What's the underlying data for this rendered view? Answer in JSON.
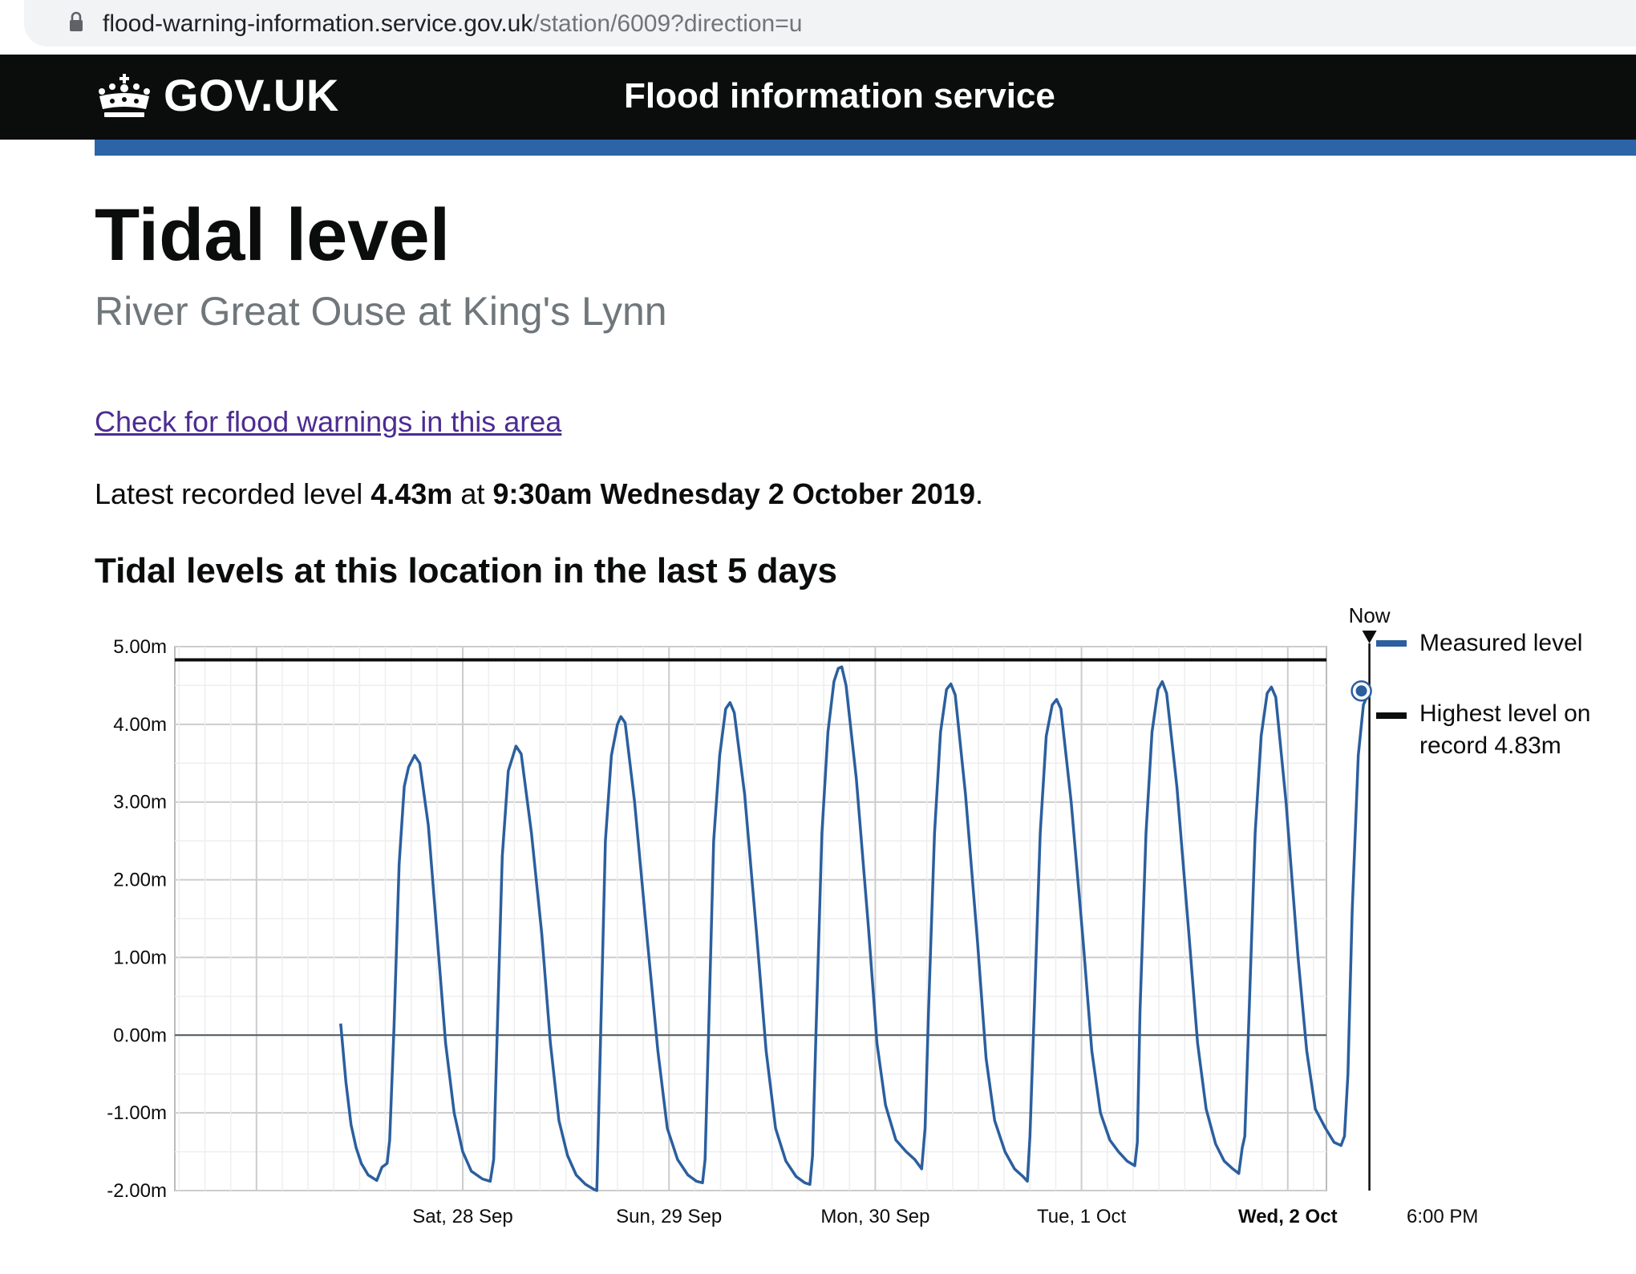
{
  "browser": {
    "url_domain": "flood-warning-information.service.gov.uk",
    "url_path": "/station/6009?direction=u"
  },
  "header": {
    "logo_text": "GOV.UK",
    "service_name": "Flood information service"
  },
  "page": {
    "title": "Tidal level",
    "subtitle": "River Great Ouse at King's Lynn",
    "warnings_link": "Check for flood warnings in this area",
    "latest_prefix": "Latest recorded level",
    "latest_value": "4.43m",
    "latest_at": "at",
    "latest_time": "9:30am Wednesday 2 October 2019",
    "latest_suffix": ".",
    "chart_heading": "Tidal levels at this location in the last 5 days"
  },
  "legend": {
    "measured": "Measured level",
    "highest": "Highest level on record 4.83m"
  },
  "colors": {
    "series": "#2b5f9e",
    "highest_line": "#0b0c0c",
    "grid_major": "#cccccc",
    "grid_minor": "#eeeeee"
  },
  "chart_data": {
    "type": "line",
    "title": "Tidal levels at this location in the last 5 days",
    "y_tick_labels": [
      "5.00m",
      "4.00m",
      "3.00m",
      "2.00m",
      "1.00m",
      "0.00m",
      "-1.00m",
      "-2.00m"
    ],
    "ylim": [
      -2,
      5
    ],
    "x_range_hours": [
      -33.5,
      100.5
    ],
    "x_ticks": [
      {
        "hours": 0,
        "label": "Sat, 28 Sep",
        "bold": false
      },
      {
        "hours": 24,
        "label": "Sun, 29 Sep",
        "bold": false
      },
      {
        "hours": 48,
        "label": "Mon, 30 Sep",
        "bold": false
      },
      {
        "hours": 72,
        "label": "Tue, 1 Oct",
        "bold": false
      },
      {
        "hours": 96,
        "label": "Wed, 2 Oct",
        "bold": true
      },
      {
        "hours": 114,
        "label": "6:00 PM",
        "bold": false
      }
    ],
    "x_axis_note": "x in hours relative to midnight Sat 28 Sep",
    "highest_on_record": 4.83,
    "now": {
      "hours": 105.5,
      "label": "Now",
      "value": 4.43
    },
    "grid": true,
    "legend_position": "right",
    "series": [
      {
        "name": "Measured level",
        "points": [
          [
            -14.2,
            0.15
          ],
          [
            -13.6,
            -0.6
          ],
          [
            -13.0,
            -1.15
          ],
          [
            -12.4,
            -1.45
          ],
          [
            -11.8,
            -1.65
          ],
          [
            -11.0,
            -1.8
          ],
          [
            -10.0,
            -1.87
          ],
          [
            -9.4,
            -1.7
          ],
          [
            -8.8,
            -1.65
          ],
          [
            -8.5,
            -1.35
          ],
          [
            -8.0,
            0.1
          ],
          [
            -7.4,
            2.2
          ],
          [
            -6.8,
            3.2
          ],
          [
            -6.3,
            3.45
          ],
          [
            -5.6,
            3.6
          ],
          [
            -5.0,
            3.5
          ],
          [
            -4.0,
            2.7
          ],
          [
            -3.0,
            1.3
          ],
          [
            -2.0,
            -0.1
          ],
          [
            -1.0,
            -1.0
          ],
          [
            0.0,
            -1.5
          ],
          [
            1.0,
            -1.75
          ],
          [
            2.3,
            -1.85
          ],
          [
            3.2,
            -1.88
          ],
          [
            3.6,
            -1.6
          ],
          [
            4.0,
            0.0
          ],
          [
            4.6,
            2.3
          ],
          [
            5.3,
            3.4
          ],
          [
            6.2,
            3.72
          ],
          [
            6.8,
            3.62
          ],
          [
            8.0,
            2.6
          ],
          [
            9.2,
            1.3
          ],
          [
            10.2,
            -0.1
          ],
          [
            11.2,
            -1.1
          ],
          [
            12.2,
            -1.55
          ],
          [
            13.2,
            -1.8
          ],
          [
            14.3,
            -1.92
          ],
          [
            15.2,
            -1.98
          ],
          [
            15.6,
            -2.0
          ],
          [
            16.0,
            -0.2
          ],
          [
            16.6,
            2.5
          ],
          [
            17.3,
            3.6
          ],
          [
            18.0,
            4.0
          ],
          [
            18.4,
            4.1
          ],
          [
            18.9,
            4.02
          ],
          [
            20.0,
            3.0
          ],
          [
            21.5,
            1.2
          ],
          [
            22.7,
            -0.2
          ],
          [
            23.8,
            -1.2
          ],
          [
            25.0,
            -1.6
          ],
          [
            26.2,
            -1.8
          ],
          [
            27.2,
            -1.88
          ],
          [
            27.9,
            -1.9
          ],
          [
            28.2,
            -1.6
          ],
          [
            28.6,
            0.0
          ],
          [
            29.2,
            2.5
          ],
          [
            29.9,
            3.6
          ],
          [
            30.6,
            4.2
          ],
          [
            31.1,
            4.28
          ],
          [
            31.6,
            4.15
          ],
          [
            32.8,
            3.1
          ],
          [
            34.2,
            1.3
          ],
          [
            35.3,
            -0.2
          ],
          [
            36.4,
            -1.2
          ],
          [
            37.6,
            -1.62
          ],
          [
            38.8,
            -1.82
          ],
          [
            39.8,
            -1.9
          ],
          [
            40.4,
            -1.92
          ],
          [
            40.7,
            -1.55
          ],
          [
            41.1,
            0.0
          ],
          [
            41.8,
            2.6
          ],
          [
            42.5,
            3.9
          ],
          [
            43.2,
            4.55
          ],
          [
            43.7,
            4.72
          ],
          [
            44.1,
            4.74
          ],
          [
            44.6,
            4.5
          ],
          [
            45.8,
            3.3
          ],
          [
            47.2,
            1.4
          ],
          [
            48.2,
            -0.1
          ],
          [
            49.2,
            -0.9
          ],
          [
            50.4,
            -1.35
          ],
          [
            51.6,
            -1.5
          ],
          [
            52.6,
            -1.6
          ],
          [
            53.4,
            -1.72
          ],
          [
            53.8,
            -1.2
          ],
          [
            54.2,
            0.3
          ],
          [
            54.9,
            2.6
          ],
          [
            55.6,
            3.9
          ],
          [
            56.3,
            4.45
          ],
          [
            56.8,
            4.52
          ],
          [
            57.3,
            4.38
          ],
          [
            58.5,
            3.1
          ],
          [
            59.9,
            1.2
          ],
          [
            60.9,
            -0.3
          ],
          [
            61.9,
            -1.1
          ],
          [
            63.1,
            -1.5
          ],
          [
            64.2,
            -1.72
          ],
          [
            65.2,
            -1.82
          ],
          [
            65.7,
            -1.88
          ],
          [
            66.0,
            -1.3
          ],
          [
            66.5,
            0.3
          ],
          [
            67.2,
            2.6
          ],
          [
            67.9,
            3.85
          ],
          [
            68.6,
            4.25
          ],
          [
            69.1,
            4.32
          ],
          [
            69.6,
            4.2
          ],
          [
            70.8,
            3.0
          ],
          [
            72.2,
            1.2
          ],
          [
            73.2,
            -0.2
          ],
          [
            74.2,
            -1.0
          ],
          [
            75.3,
            -1.35
          ],
          [
            76.3,
            -1.5
          ],
          [
            77.3,
            -1.62
          ],
          [
            78.2,
            -1.68
          ],
          [
            78.5,
            -1.38
          ],
          [
            78.8,
            0.3
          ],
          [
            79.5,
            2.6
          ],
          [
            80.2,
            3.9
          ],
          [
            80.9,
            4.45
          ],
          [
            81.4,
            4.55
          ],
          [
            81.9,
            4.4
          ],
          [
            83.1,
            3.2
          ],
          [
            84.5,
            1.3
          ],
          [
            85.5,
            -0.1
          ],
          [
            86.5,
            -0.95
          ],
          [
            87.6,
            -1.4
          ],
          [
            88.6,
            -1.62
          ],
          [
            89.6,
            -1.72
          ],
          [
            90.3,
            -1.78
          ],
          [
            90.7,
            -1.45
          ],
          [
            91.0,
            -1.3
          ],
          [
            91.5,
            0.3
          ],
          [
            92.2,
            2.6
          ],
          [
            92.9,
            3.85
          ],
          [
            93.6,
            4.4
          ],
          [
            94.1,
            4.48
          ],
          [
            94.6,
            4.35
          ],
          [
            95.8,
            3.0
          ],
          [
            97.2,
            1.0
          ],
          [
            98.2,
            -0.2
          ],
          [
            99.2,
            -0.95
          ],
          [
            100.4,
            -1.2
          ],
          [
            101.4,
            -1.38
          ],
          [
            102.2,
            -1.42
          ],
          [
            102.6,
            -1.3
          ],
          [
            103.0,
            -0.5
          ],
          [
            103.5,
            1.6
          ],
          [
            104.2,
            3.6
          ],
          [
            104.8,
            4.25
          ],
          [
            105.5,
            4.43
          ]
        ]
      }
    ]
  }
}
